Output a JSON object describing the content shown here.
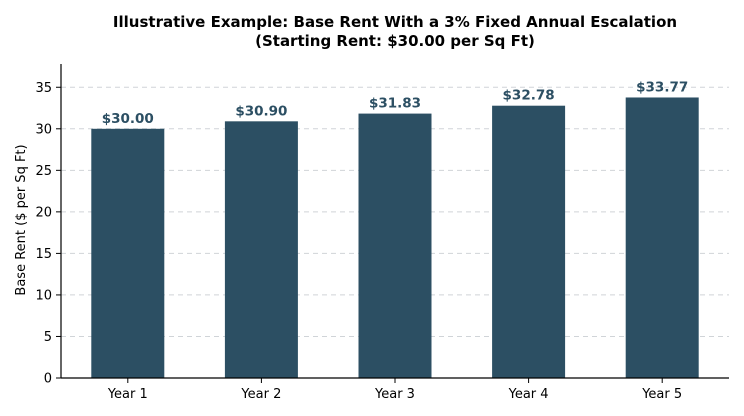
{
  "chart_data": {
    "type": "bar",
    "title": "Illustrative Example: Base Rent With a 3% Fixed Annual Escalation",
    "subtitle": "(Starting Rent: $30.00 per Sq Ft)",
    "xlabel": "",
    "ylabel": "Base Rent ($ per Sq Ft)",
    "categories": [
      "Year 1",
      "Year 2",
      "Year 3",
      "Year 4",
      "Year 5"
    ],
    "values": [
      30.0,
      30.9,
      31.83,
      32.78,
      33.77
    ],
    "data_labels": [
      "$30.00",
      "$30.90",
      "$31.83",
      "$32.78",
      "$33.77"
    ],
    "ylim": [
      0,
      37.8
    ],
    "yticks": [
      0,
      5,
      10,
      15,
      20,
      25,
      30,
      35
    ],
    "grid": "horizontal-dashed",
    "legend": "none",
    "colors": {
      "bar": "#2c4f63",
      "data_label": "#2c4f63"
    }
  }
}
